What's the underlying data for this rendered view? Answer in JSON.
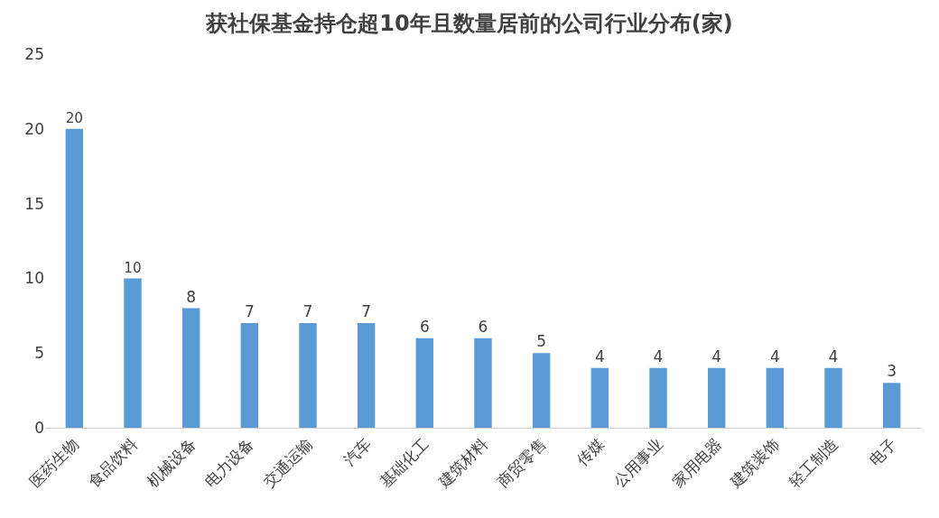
{
  "chart_data": {
    "type": "bar",
    "title": "获社保基金持仓超10年且数量居前的公司行业分布(家)",
    "categories": [
      "医药生物",
      "食品饮料",
      "机械设备",
      "电力设备",
      "交通运输",
      "汽车",
      "基础化工",
      "建筑材料",
      "商贸零售",
      "传媒",
      "公用事业",
      "家用电器",
      "建筑装饰",
      "轻工制造",
      "电子"
    ],
    "values": [
      20,
      10,
      8,
      7,
      7,
      7,
      6,
      6,
      5,
      4,
      4,
      4,
      4,
      4,
      3
    ],
    "color": "#5b9bd5",
    "ylim": [
      0,
      25
    ],
    "yticks": [
      0,
      5,
      10,
      15,
      20,
      25
    ],
    "grid": false,
    "data_labels": true
  }
}
